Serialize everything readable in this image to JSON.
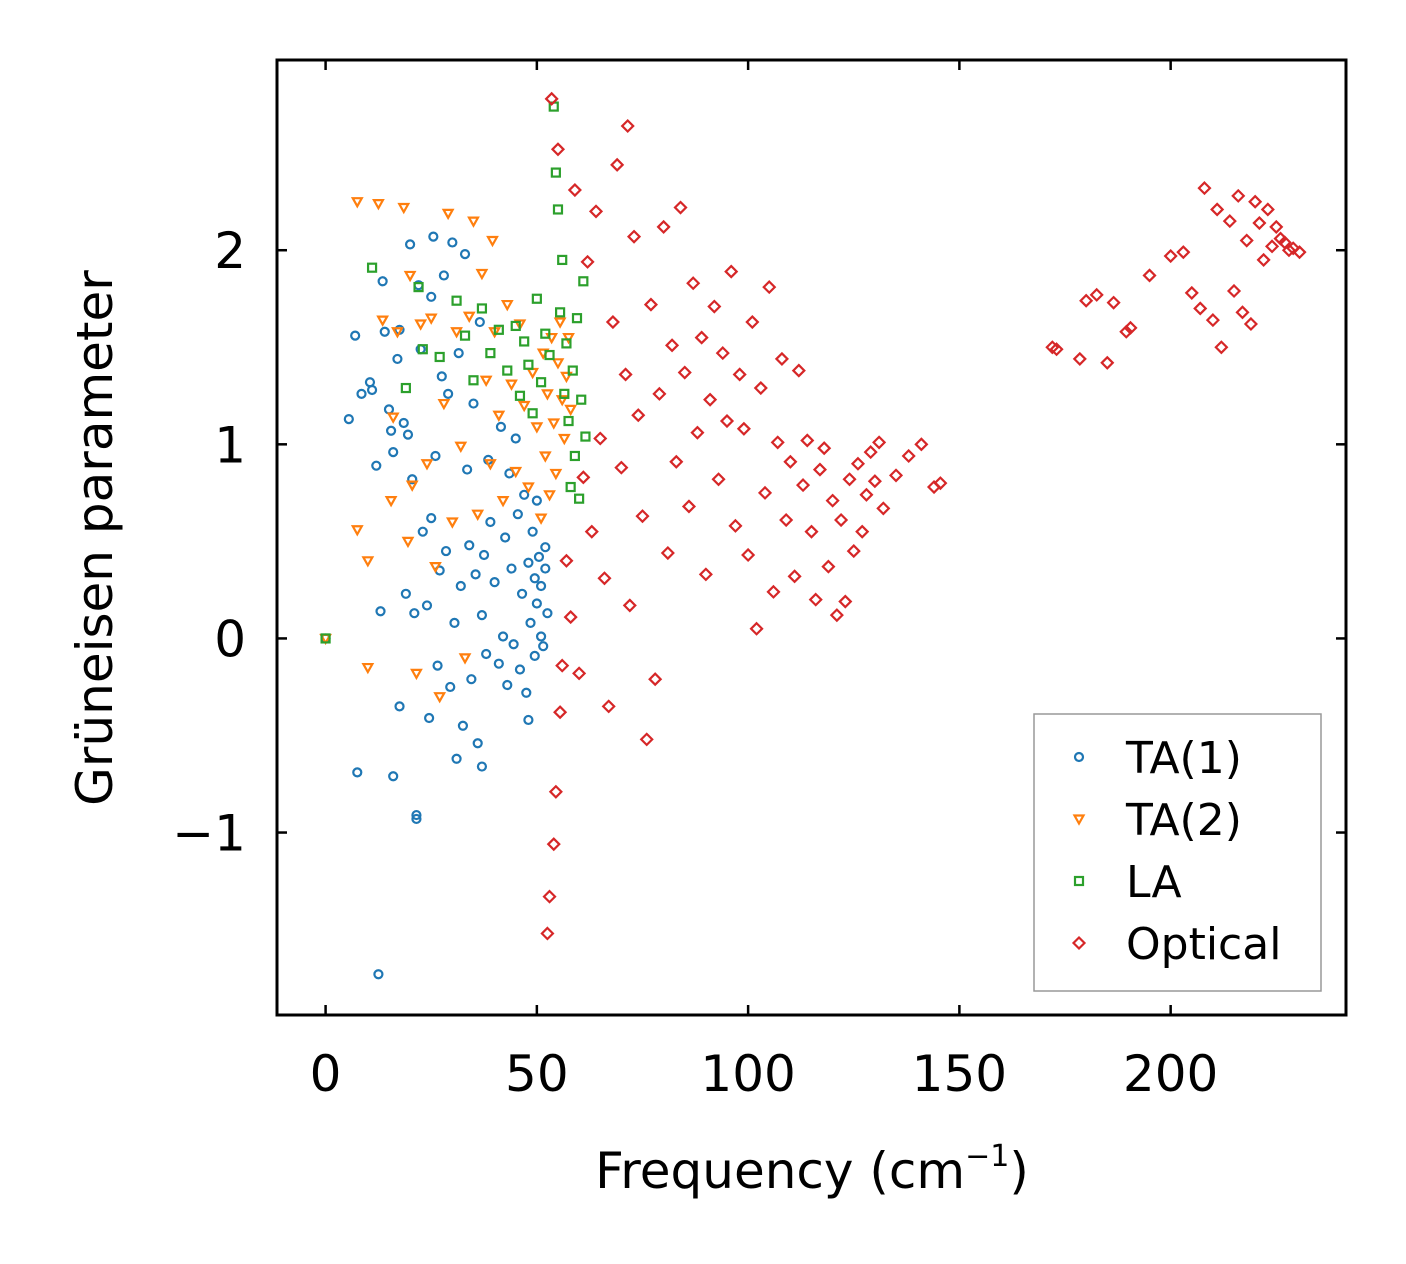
{
  "chart_data": {
    "type": "scatter",
    "title": "",
    "xlabel": "Frequency (cm",
    "xlabel_sup": "−1",
    "xlabel_suffix": ")",
    "ylabel": "Grüneisen parameter",
    "xlim": [
      -11.5,
      241.5
    ],
    "ylim": [
      -1.94,
      2.98
    ],
    "xticks": [
      0,
      50,
      100,
      150,
      200
    ],
    "xtick_labels": [
      "0",
      "50",
      "100",
      "150",
      "200"
    ],
    "yticks": [
      -1,
      0,
      1,
      2
    ],
    "ytick_labels": [
      "−1",
      "0",
      "1",
      "2"
    ],
    "grid": false,
    "legend_position": "lower-right",
    "series": [
      {
        "name": "TA(1)",
        "marker": "circle",
        "color": "#1f77b4",
        "points": [
          [
            0,
            0.0
          ],
          [
            5.5,
            1.13
          ],
          [
            7,
            1.56
          ],
          [
            7.5,
            -0.69
          ],
          [
            8.5,
            1.26
          ],
          [
            10.5,
            1.32
          ],
          [
            11,
            1.28
          ],
          [
            12,
            0.89
          ],
          [
            12.5,
            -1.73
          ],
          [
            13,
            0.14
          ],
          [
            13.5,
            1.84
          ],
          [
            14,
            1.58
          ],
          [
            15,
            1.18
          ],
          [
            15.5,
            1.07
          ],
          [
            16,
            0.96
          ],
          [
            16,
            -0.71
          ],
          [
            17,
            1.44
          ],
          [
            17.5,
            1.59
          ],
          [
            17.5,
            -0.35
          ],
          [
            18.5,
            1.11
          ],
          [
            19,
            0.23
          ],
          [
            19.5,
            1.05
          ],
          [
            20,
            2.03
          ],
          [
            20.5,
            0.82
          ],
          [
            21,
            0.13
          ],
          [
            21.5,
            -0.91
          ],
          [
            21.5,
            -0.93
          ],
          [
            22,
            1.82
          ],
          [
            22.5,
            1.49
          ],
          [
            23,
            0.55
          ],
          [
            24,
            0.17
          ],
          [
            24.5,
            -0.41
          ],
          [
            25,
            1.76
          ],
          [
            25,
            0.62
          ],
          [
            25.5,
            2.07
          ],
          [
            26,
            0.94
          ],
          [
            26.5,
            -0.14
          ],
          [
            27,
            0.35
          ],
          [
            27.5,
            1.35
          ],
          [
            28,
            1.87
          ],
          [
            28.5,
            0.45
          ],
          [
            29,
            1.26
          ],
          [
            29.5,
            -0.25
          ],
          [
            30,
            2.04
          ],
          [
            30.5,
            0.08
          ],
          [
            31,
            -0.62
          ],
          [
            31.5,
            1.47
          ],
          [
            32,
            0.27
          ],
          [
            32.5,
            -0.45
          ],
          [
            33,
            1.98
          ],
          [
            33.5,
            0.87
          ],
          [
            34,
            0.48
          ],
          [
            34.5,
            -0.21
          ],
          [
            35,
            1.21
          ],
          [
            35.5,
            0.33
          ],
          [
            36,
            -0.54
          ],
          [
            36.5,
            1.63
          ],
          [
            37,
            0.12
          ],
          [
            37,
            -0.66
          ],
          [
            37.5,
            0.43
          ],
          [
            38,
            -0.08
          ],
          [
            38.5,
            0.92
          ],
          [
            39,
            0.6
          ],
          [
            40,
            0.29
          ],
          [
            41,
            -0.13
          ],
          [
            41.5,
            1.09
          ],
          [
            42,
            0.01
          ],
          [
            42.5,
            0.52
          ],
          [
            43,
            -0.24
          ],
          [
            43.5,
            0.85
          ],
          [
            44,
            0.36
          ],
          [
            44.5,
            -0.03
          ],
          [
            45,
            1.03
          ],
          [
            45.5,
            0.64
          ],
          [
            46,
            -0.16
          ],
          [
            46.5,
            0.23
          ],
          [
            47,
            0.74
          ],
          [
            47.5,
            -0.28
          ],
          [
            48,
            0.39
          ],
          [
            48,
            -0.42
          ],
          [
            48.5,
            0.08
          ],
          [
            49,
            0.55
          ],
          [
            49.5,
            0.31
          ],
          [
            49.5,
            -0.09
          ],
          [
            50,
            0.18
          ],
          [
            50,
            0.71
          ],
          [
            50.5,
            0.42
          ],
          [
            51,
            0.01
          ],
          [
            51,
            0.27
          ],
          [
            51.5,
            -0.04
          ],
          [
            52,
            0.36
          ],
          [
            52,
            0.47
          ],
          [
            52.5,
            0.13
          ]
        ]
      },
      {
        "name": "TA(2)",
        "marker": "triangle-down",
        "color": "#ff7f0e",
        "points": [
          [
            0,
            0.0
          ],
          [
            7.5,
            2.25
          ],
          [
            7.5,
            0.56
          ],
          [
            10,
            0.4
          ],
          [
            10,
            -0.15
          ],
          [
            12.5,
            2.24
          ],
          [
            13.5,
            1.64
          ],
          [
            15.5,
            0.71
          ],
          [
            16,
            1.14
          ],
          [
            17,
            1.58
          ],
          [
            18.5,
            2.22
          ],
          [
            19.5,
            0.5
          ],
          [
            20,
            1.87
          ],
          [
            20.5,
            0.79
          ],
          [
            21.5,
            -0.18
          ],
          [
            22.5,
            1.62
          ],
          [
            24,
            0.9
          ],
          [
            25,
            1.65
          ],
          [
            26,
            0.37
          ],
          [
            27,
            -0.3
          ],
          [
            28,
            1.21
          ],
          [
            29,
            2.19
          ],
          [
            30,
            0.6
          ],
          [
            31,
            1.58
          ],
          [
            32,
            0.99
          ],
          [
            33,
            -0.1
          ],
          [
            34,
            1.66
          ],
          [
            35,
            2.15
          ],
          [
            36,
            0.64
          ],
          [
            37,
            1.88
          ],
          [
            38,
            1.33
          ],
          [
            39,
            0.9
          ],
          [
            39.5,
            2.05
          ],
          [
            40,
            1.58
          ],
          [
            41,
            1.15
          ],
          [
            42,
            0.71
          ],
          [
            43,
            1.72
          ],
          [
            44,
            1.31
          ],
          [
            45,
            0.86
          ],
          [
            46,
            1.62
          ],
          [
            47,
            1.2
          ],
          [
            48,
            0.78
          ],
          [
            49,
            1.37
          ],
          [
            50,
            1.09
          ],
          [
            51,
            0.62
          ],
          [
            51.5,
            1.47
          ],
          [
            52,
            0.94
          ],
          [
            52.5,
            1.26
          ],
          [
            53,
            0.74
          ],
          [
            53.5,
            1.55
          ],
          [
            54,
            1.11
          ],
          [
            54.5,
            0.85
          ],
          [
            55,
            1.42
          ],
          [
            55.5,
            1.63
          ],
          [
            56,
            1.23
          ],
          [
            56.5,
            1.03
          ],
          [
            57,
            1.35
          ],
          [
            57.5,
            1.55
          ],
          [
            58,
            1.18
          ]
        ]
      },
      {
        "name": "LA",
        "marker": "square",
        "color": "#2ca02c",
        "points": [
          [
            0,
            0.0
          ],
          [
            11,
            1.91
          ],
          [
            19,
            1.29
          ],
          [
            22,
            1.81
          ],
          [
            23,
            1.49
          ],
          [
            27,
            1.45
          ],
          [
            31,
            1.74
          ],
          [
            33,
            1.56
          ],
          [
            35,
            1.33
          ],
          [
            37,
            1.7
          ],
          [
            39,
            1.47
          ],
          [
            41,
            1.59
          ],
          [
            43,
            1.38
          ],
          [
            45,
            1.61
          ],
          [
            46,
            1.25
          ],
          [
            47,
            1.53
          ],
          [
            48,
            1.41
          ],
          [
            49,
            1.16
          ],
          [
            50,
            1.75
          ],
          [
            51,
            1.32
          ],
          [
            52,
            1.57
          ],
          [
            53,
            1.46
          ],
          [
            54,
            2.74
          ],
          [
            54.5,
            2.4
          ],
          [
            55,
            2.21
          ],
          [
            55.5,
            1.68
          ],
          [
            56,
            1.95
          ],
          [
            56.5,
            1.26
          ],
          [
            57,
            1.52
          ],
          [
            57.5,
            1.12
          ],
          [
            58,
            0.78
          ],
          [
            58.5,
            1.38
          ],
          [
            59,
            0.94
          ],
          [
            59.5,
            1.65
          ],
          [
            60,
            0.72
          ],
          [
            60.5,
            1.23
          ],
          [
            61,
            1.84
          ],
          [
            61.5,
            1.04
          ]
        ]
      },
      {
        "name": "Optical",
        "marker": "diamond",
        "color": "#d62728",
        "points": [
          [
            52.5,
            -1.52
          ],
          [
            53,
            -1.33
          ],
          [
            53.5,
            2.78
          ],
          [
            54,
            -1.06
          ],
          [
            54.5,
            -0.79
          ],
          [
            55,
            2.52
          ],
          [
            55.5,
            -0.38
          ],
          [
            56,
            -0.14
          ],
          [
            57,
            0.4
          ],
          [
            58,
            0.11
          ],
          [
            59,
            2.31
          ],
          [
            60,
            -0.18
          ],
          [
            61,
            0.83
          ],
          [
            62,
            1.94
          ],
          [
            63,
            0.55
          ],
          [
            64,
            2.2
          ],
          [
            65,
            1.03
          ],
          [
            66,
            0.31
          ],
          [
            67,
            -0.35
          ],
          [
            68,
            1.63
          ],
          [
            69,
            2.44
          ],
          [
            70,
            0.88
          ],
          [
            71,
            1.36
          ],
          [
            71.5,
            2.64
          ],
          [
            72,
            0.17
          ],
          [
            73,
            2.07
          ],
          [
            74,
            1.15
          ],
          [
            75,
            0.63
          ],
          [
            76,
            -0.52
          ],
          [
            77,
            1.72
          ],
          [
            78,
            -0.21
          ],
          [
            79,
            1.26
          ],
          [
            80,
            2.12
          ],
          [
            81,
            0.44
          ],
          [
            82,
            1.51
          ],
          [
            83,
            0.91
          ],
          [
            84,
            2.22
          ],
          [
            85,
            1.37
          ],
          [
            86,
            0.68
          ],
          [
            87,
            1.83
          ],
          [
            88,
            1.06
          ],
          [
            89,
            1.55
          ],
          [
            90,
            0.33
          ],
          [
            91,
            1.23
          ],
          [
            92,
            1.71
          ],
          [
            93,
            0.82
          ],
          [
            94,
            1.47
          ],
          [
            95,
            1.12
          ],
          [
            96,
            1.89
          ],
          [
            97,
            0.58
          ],
          [
            98,
            1.36
          ],
          [
            99,
            1.08
          ],
          [
            100,
            0.43
          ],
          [
            101,
            1.63
          ],
          [
            102,
            0.05
          ],
          [
            103,
            1.29
          ],
          [
            104,
            0.75
          ],
          [
            105,
            1.81
          ],
          [
            106,
            0.24
          ],
          [
            107,
            1.01
          ],
          [
            108,
            1.44
          ],
          [
            109,
            0.61
          ],
          [
            110,
            0.91
          ],
          [
            111,
            0.32
          ],
          [
            112,
            1.38
          ],
          [
            113,
            0.79
          ],
          [
            114,
            1.02
          ],
          [
            115,
            0.55
          ],
          [
            116,
            0.2
          ],
          [
            117,
            0.87
          ],
          [
            118,
            0.98
          ],
          [
            119,
            0.37
          ],
          [
            120,
            0.71
          ],
          [
            121,
            0.12
          ],
          [
            122,
            0.61
          ],
          [
            123,
            0.19
          ],
          [
            124,
            0.82
          ],
          [
            125,
            0.45
          ],
          [
            126,
            0.9
          ],
          [
            127,
            0.55
          ],
          [
            128,
            0.74
          ],
          [
            129,
            0.96
          ],
          [
            130,
            0.81
          ],
          [
            131,
            1.01
          ],
          [
            132,
            0.67
          ],
          [
            135,
            0.84
          ],
          [
            138,
            0.94
          ],
          [
            141,
            1.0
          ],
          [
            144,
            0.78
          ],
          [
            145.5,
            0.8
          ],
          [
            172,
            1.5
          ],
          [
            173,
            1.49
          ],
          [
            178.5,
            1.44
          ],
          [
            180,
            1.74
          ],
          [
            182.5,
            1.77
          ],
          [
            185,
            1.42
          ],
          [
            186.5,
            1.73
          ],
          [
            189.5,
            1.58
          ],
          [
            190.5,
            1.6
          ],
          [
            195,
            1.87
          ],
          [
            200,
            1.97
          ],
          [
            203,
            1.99
          ],
          [
            205,
            1.78
          ],
          [
            207,
            1.7
          ],
          [
            208,
            2.32
          ],
          [
            210,
            1.64
          ],
          [
            211,
            2.21
          ],
          [
            212,
            1.5
          ],
          [
            214,
            2.15
          ],
          [
            215,
            1.79
          ],
          [
            216,
            2.28
          ],
          [
            217,
            1.68
          ],
          [
            218,
            2.05
          ],
          [
            219,
            1.62
          ],
          [
            220,
            2.25
          ],
          [
            221,
            2.14
          ],
          [
            222,
            1.95
          ],
          [
            223,
            2.21
          ],
          [
            224,
            2.02
          ],
          [
            225,
            2.12
          ],
          [
            226,
            2.06
          ],
          [
            227,
            2.04
          ],
          [
            228,
            2.0
          ],
          [
            229,
            2.01
          ],
          [
            230.5,
            1.99
          ]
        ]
      }
    ]
  }
}
